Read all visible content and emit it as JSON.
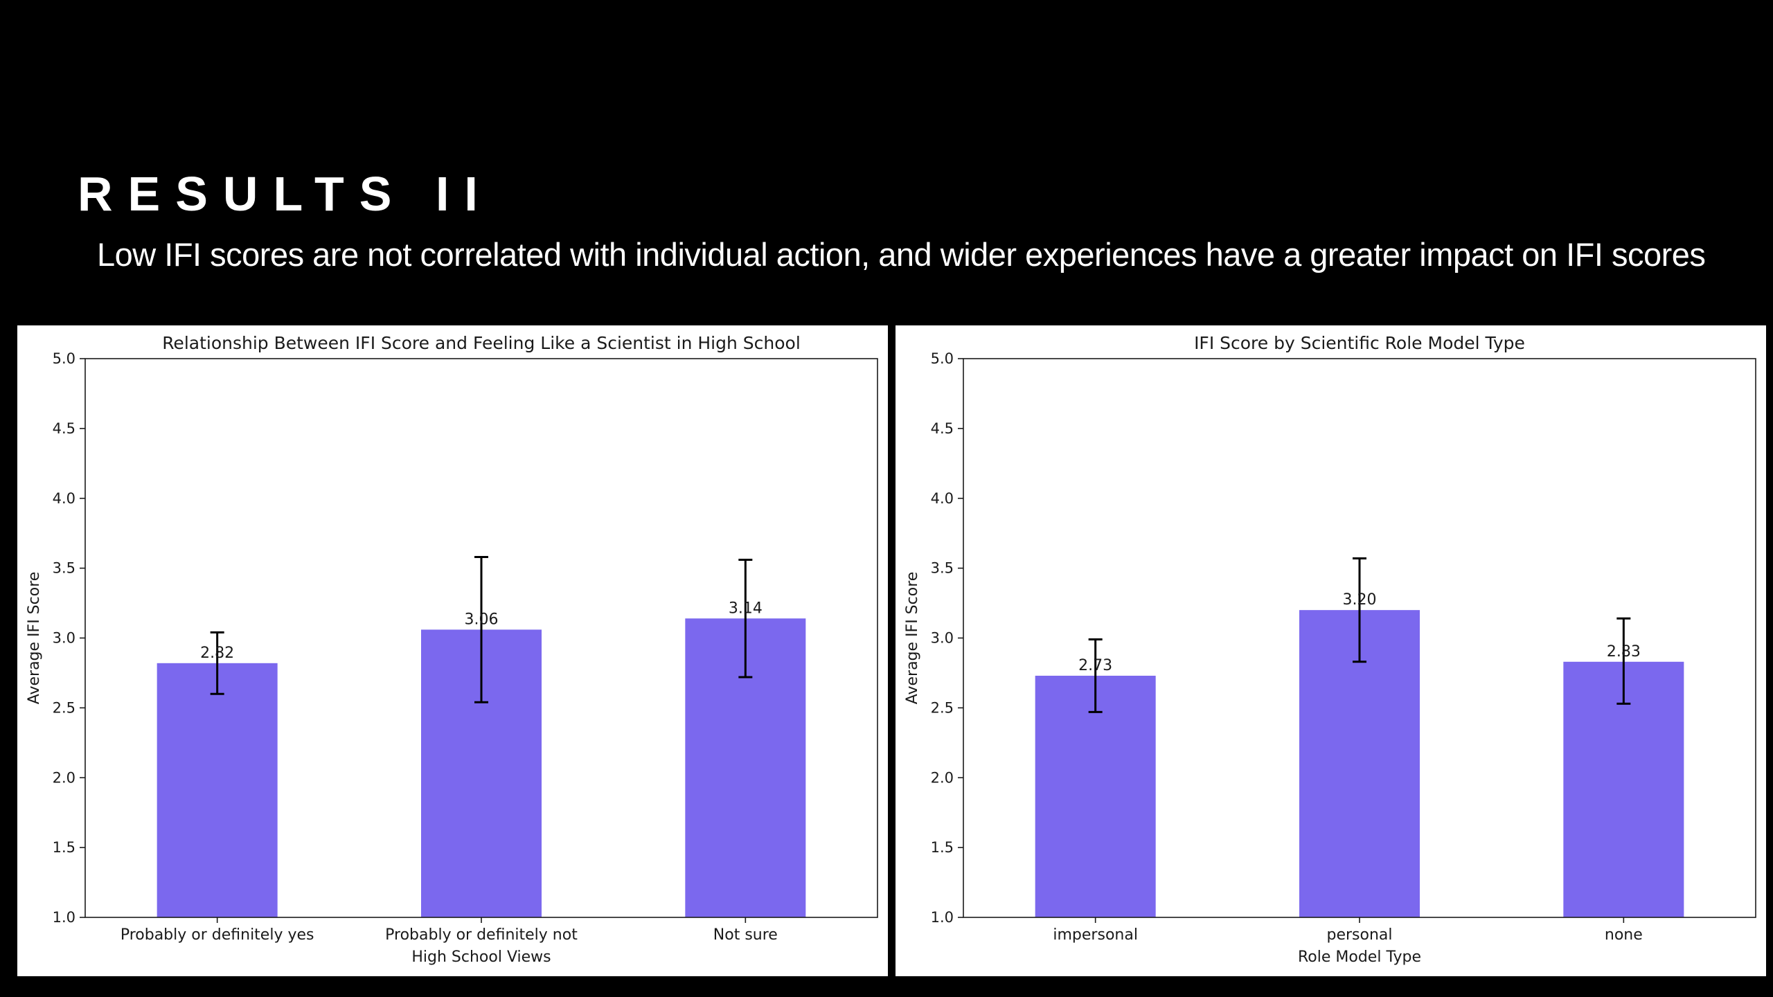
{
  "slide": {
    "title": "RESULTS II",
    "subtitle": "Low IFI scores are not correlated with individual action, and wider experiences have a greater impact on IFI scores"
  },
  "colors": {
    "background": "#000000",
    "bar": "#7b68ee",
    "error_bar": "#000000"
  },
  "chart_data": [
    {
      "type": "bar",
      "title": "Relationship Between IFI Score and Feeling Like a Scientist in High School",
      "xlabel": "High School Views",
      "ylabel": "Average IFI Score",
      "ylim": [
        1.0,
        5.0
      ],
      "yticks": [
        "1.0",
        "1.5",
        "2.0",
        "2.5",
        "3.0",
        "3.5",
        "4.0",
        "4.5",
        "5.0"
      ],
      "grid": false,
      "categories": [
        "Probably or definitely yes",
        "Probably or definitely not",
        "Not sure"
      ],
      "values": [
        2.82,
        3.06,
        3.14
      ],
      "value_labels": [
        "2.82",
        "3.06",
        "3.14"
      ],
      "error_low": [
        2.6,
        2.54,
        2.72
      ],
      "error_high": [
        3.04,
        3.58,
        3.56
      ]
    },
    {
      "type": "bar",
      "title": "IFI Score by Scientific Role Model Type",
      "xlabel": "Role Model Type",
      "ylabel": "Average IFI Score",
      "ylim": [
        1.0,
        5.0
      ],
      "yticks": [
        "1.0",
        "1.5",
        "2.0",
        "2.5",
        "3.0",
        "3.5",
        "4.0",
        "4.5",
        "5.0"
      ],
      "grid": false,
      "categories": [
        "impersonal",
        "personal",
        "none"
      ],
      "values": [
        2.73,
        3.2,
        2.83
      ],
      "value_labels": [
        "2.73",
        "3.20",
        "2.83"
      ],
      "error_low": [
        2.47,
        2.83,
        2.53
      ],
      "error_high": [
        2.99,
        3.57,
        3.14
      ]
    }
  ]
}
